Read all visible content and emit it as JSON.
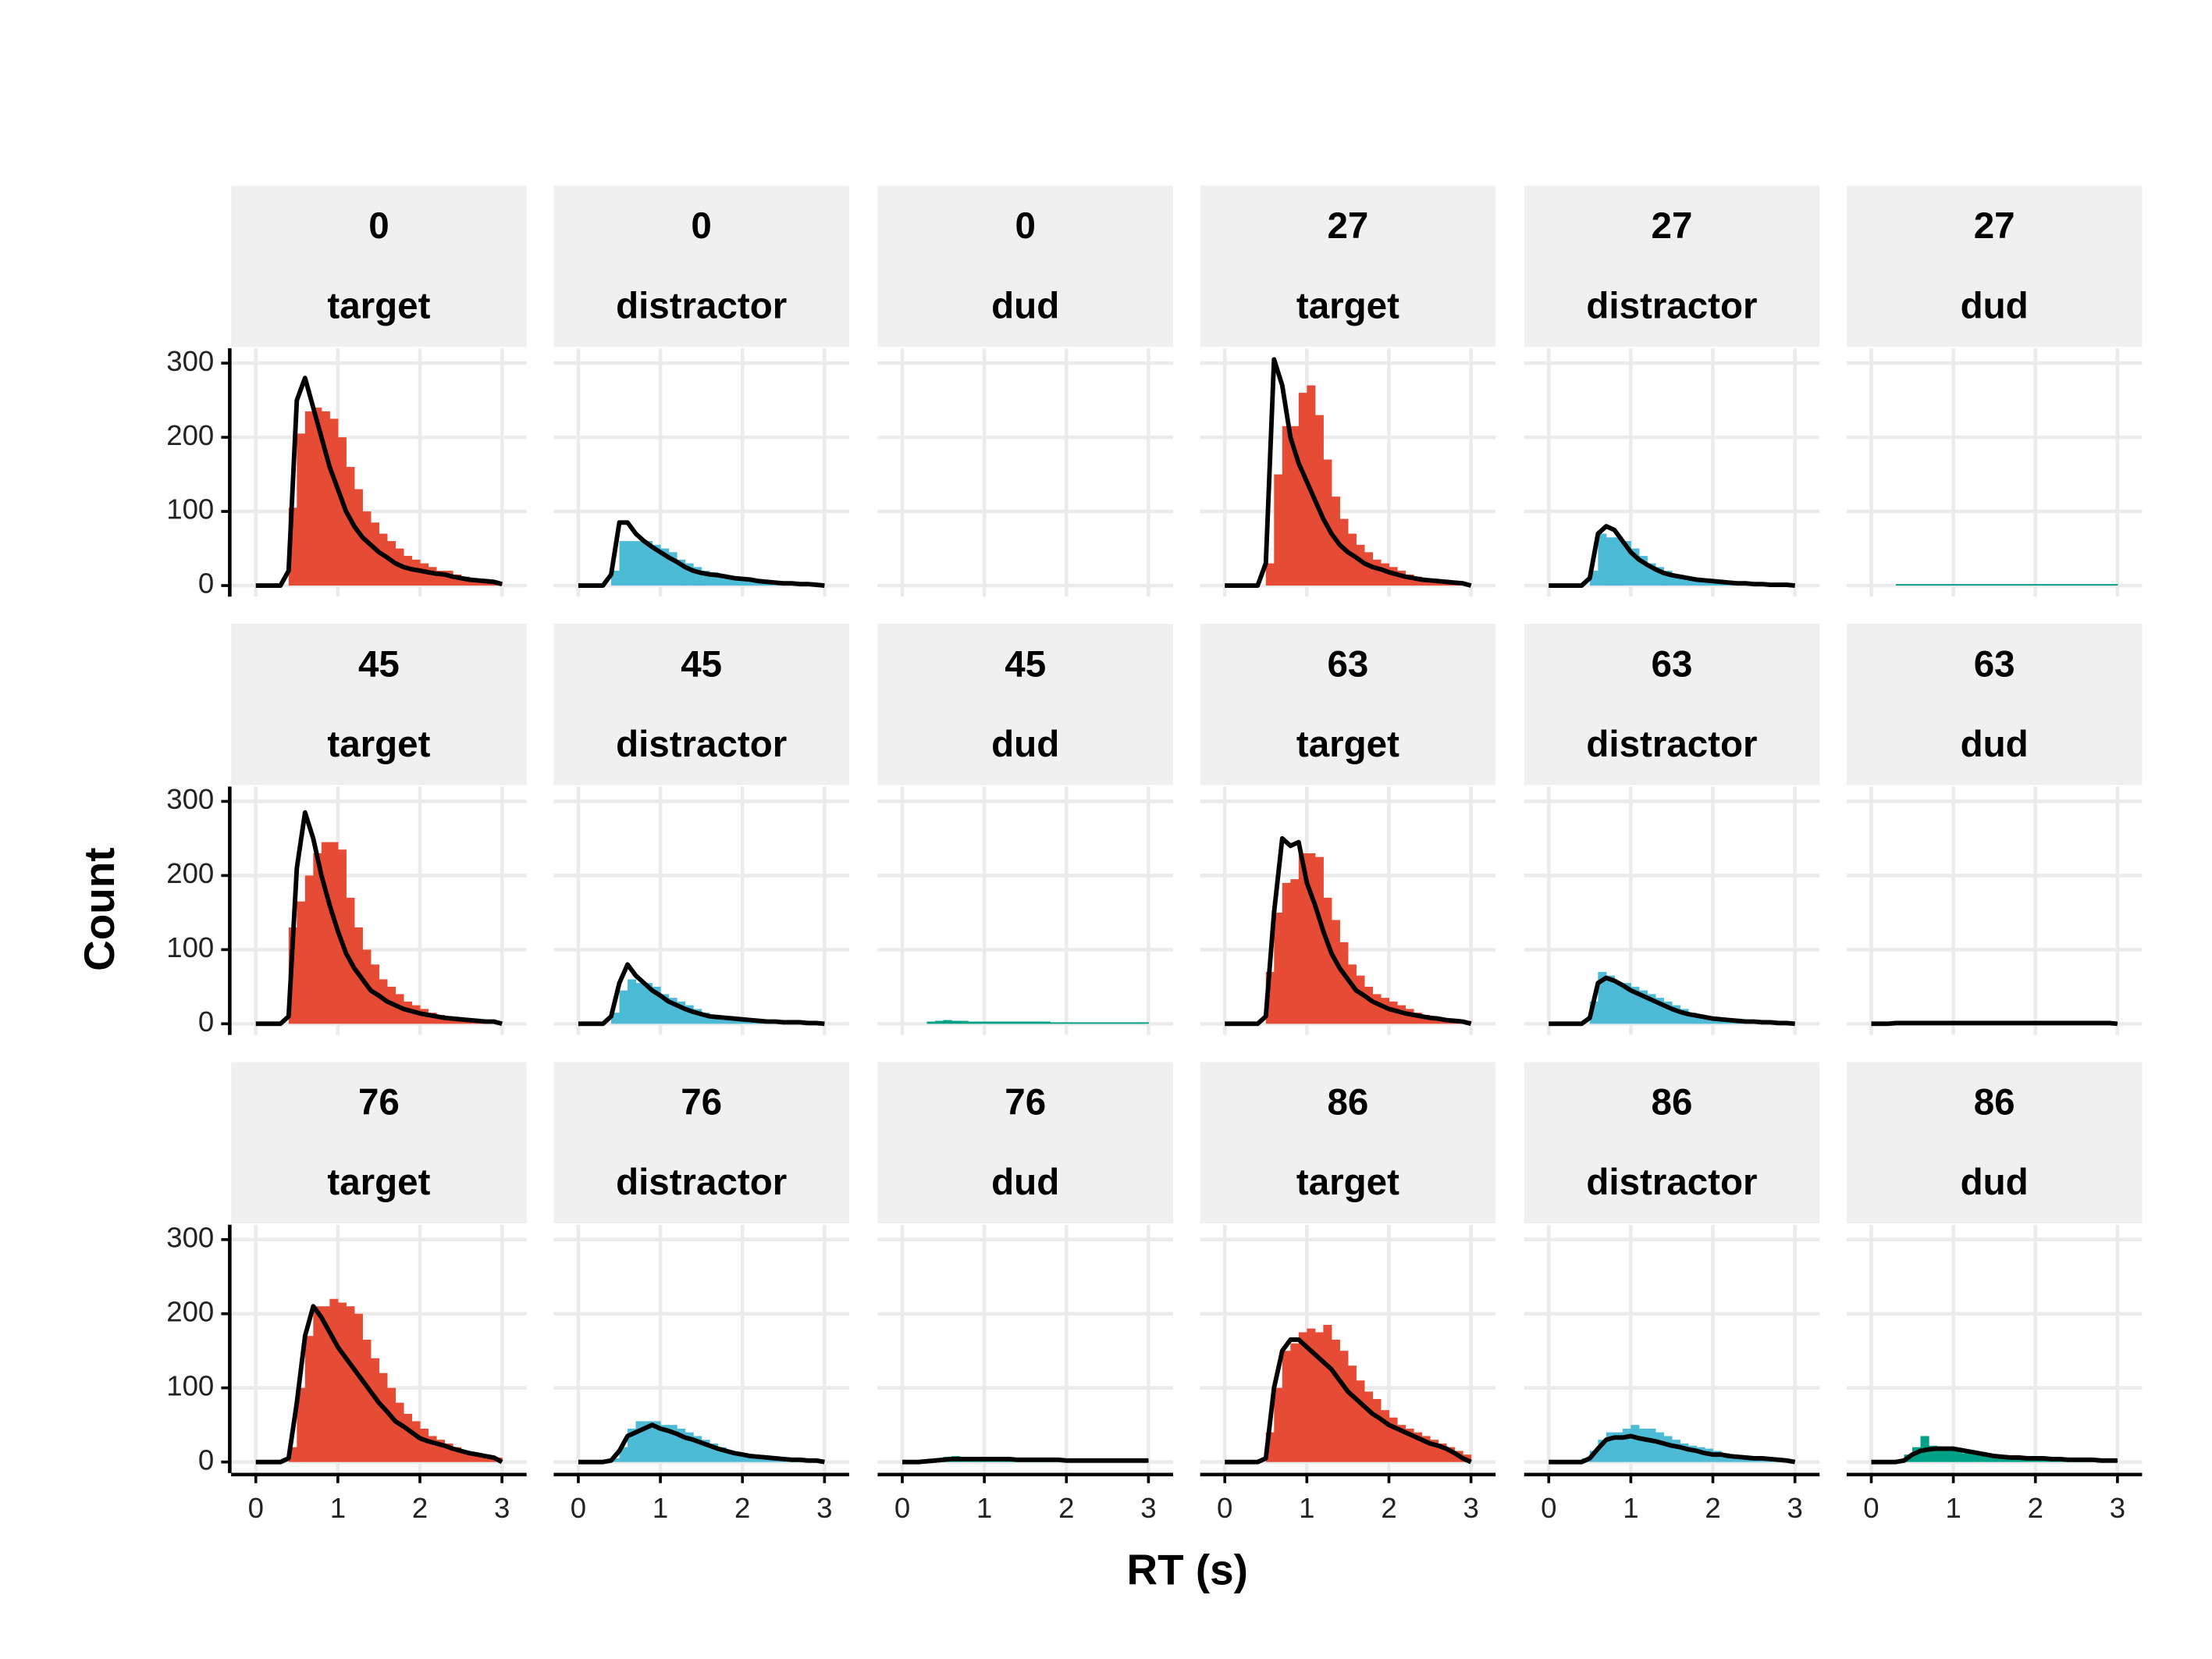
{
  "chart_data": {
    "type": "histogram",
    "xlabel": "RT (s)",
    "ylabel": "Count",
    "xlim": [
      -0.3,
      3.3
    ],
    "ylim": [
      -15,
      320
    ],
    "xticks": [
      0,
      1,
      2,
      3
    ],
    "yticks": [
      0,
      100,
      200,
      300
    ],
    "grid": true,
    "line_color": "#000000",
    "bins": [
      0,
      0.1,
      0.2,
      0.3,
      0.4,
      0.5,
      0.6,
      0.7,
      0.8,
      0.9,
      1,
      1.1,
      1.2,
      1.3,
      1.4,
      1.5,
      1.6,
      1.7,
      1.8,
      1.9,
      2,
      2.1,
      2.2,
      2.3,
      2.4,
      2.5,
      2.6,
      2.7,
      2.8,
      2.9,
      3
    ],
    "panels": [
      {
        "strip": [
          "0",
          "target"
        ],
        "color": "#E64B35",
        "counts": [
          0,
          0,
          0,
          0,
          105,
          205,
          235,
          240,
          235,
          225,
          200,
          160,
          130,
          100,
          85,
          70,
          60,
          50,
          40,
          35,
          30,
          25,
          20,
          20,
          15,
          12,
          10,
          8,
          6,
          4
        ],
        "line": [
          0,
          0,
          0,
          0,
          20,
          250,
          280,
          240,
          200,
          160,
          130,
          100,
          80,
          65,
          55,
          45,
          38,
          30,
          25,
          22,
          20,
          18,
          16,
          15,
          12,
          10,
          8,
          7,
          6,
          5,
          2
        ]
      },
      {
        "strip": [
          "0",
          "distractor"
        ],
        "color": "#4DBBD5",
        "counts": [
          0,
          0,
          0,
          0,
          20,
          60,
          60,
          60,
          60,
          55,
          50,
          45,
          35,
          30,
          25,
          20,
          18,
          15,
          12,
          10,
          8,
          7,
          6,
          5,
          4,
          3,
          3,
          2,
          2,
          1
        ],
        "line": [
          0,
          0,
          0,
          0,
          15,
          85,
          85,
          70,
          60,
          52,
          45,
          38,
          32,
          25,
          20,
          17,
          15,
          14,
          12,
          10,
          9,
          8,
          6,
          5,
          4,
          3,
          3,
          2,
          2,
          1,
          0
        ]
      },
      {
        "strip": [
          "0",
          "dud"
        ],
        "color": "#00A087",
        "counts": [
          0,
          0,
          0,
          0,
          0,
          0,
          0,
          0,
          0,
          0,
          0,
          0,
          0,
          0,
          0,
          0,
          0,
          0,
          0,
          0,
          0,
          0,
          0,
          0,
          0,
          0,
          0,
          0,
          0,
          0
        ]
      },
      {
        "strip": [
          "27",
          "target"
        ],
        "color": "#E64B35",
        "counts": [
          0,
          0,
          0,
          0,
          0,
          30,
          150,
          215,
          215,
          260,
          270,
          230,
          170,
          120,
          90,
          70,
          55,
          45,
          35,
          30,
          25,
          20,
          15,
          12,
          10,
          8,
          6,
          5,
          4,
          3
        ],
        "line": [
          0,
          0,
          0,
          0,
          0,
          30,
          305,
          270,
          200,
          165,
          140,
          115,
          90,
          70,
          55,
          45,
          38,
          30,
          25,
          22,
          18,
          15,
          12,
          10,
          8,
          7,
          6,
          5,
          4,
          3,
          0
        ]
      },
      {
        "strip": [
          "27",
          "distractor"
        ],
        "color": "#4DBBD5",
        "counts": [
          0,
          0,
          0,
          0,
          0,
          20,
          70,
          65,
          65,
          60,
          50,
          40,
          30,
          25,
          20,
          15,
          12,
          10,
          8,
          7,
          6,
          5,
          4,
          3,
          3,
          2,
          2,
          2,
          1,
          1
        ],
        "line": [
          0,
          0,
          0,
          0,
          0,
          10,
          70,
          80,
          75,
          60,
          45,
          35,
          28,
          22,
          17,
          14,
          12,
          10,
          8,
          7,
          6,
          5,
          4,
          3,
          3,
          2,
          2,
          1,
          1,
          1,
          0
        ]
      },
      {
        "strip": [
          "27",
          "dud"
        ],
        "color": "#00A087",
        "counts": [
          0,
          0,
          0,
          2,
          2,
          2,
          2,
          2,
          2,
          2,
          2,
          2,
          2,
          2,
          2,
          2,
          2,
          2,
          2,
          2,
          2,
          2,
          2,
          2,
          2,
          2,
          2,
          2,
          2,
          2
        ]
      },
      {
        "strip": [
          "45",
          "target"
        ],
        "color": "#E64B35",
        "counts": [
          0,
          0,
          0,
          0,
          130,
          165,
          200,
          230,
          245,
          245,
          235,
          170,
          130,
          100,
          80,
          60,
          50,
          40,
          30,
          25,
          20,
          15,
          12,
          10,
          8,
          7,
          6,
          5,
          4,
          3
        ],
        "line": [
          0,
          0,
          0,
          0,
          10,
          210,
          285,
          250,
          200,
          160,
          125,
          95,
          75,
          60,
          45,
          38,
          30,
          25,
          20,
          17,
          14,
          12,
          10,
          8,
          7,
          6,
          5,
          4,
          3,
          3,
          0
        ]
      },
      {
        "strip": [
          "45",
          "distractor"
        ],
        "color": "#4DBBD5",
        "counts": [
          0,
          0,
          0,
          0,
          15,
          45,
          60,
          55,
          55,
          50,
          40,
          35,
          30,
          25,
          20,
          15,
          12,
          10,
          8,
          6,
          5,
          4,
          4,
          3,
          3,
          2,
          2,
          1,
          1,
          1
        ],
        "line": [
          0,
          0,
          0,
          0,
          10,
          55,
          80,
          65,
          55,
          45,
          38,
          30,
          25,
          20,
          16,
          13,
          10,
          9,
          8,
          7,
          6,
          5,
          4,
          3,
          3,
          2,
          2,
          2,
          1,
          1,
          0
        ]
      },
      {
        "strip": [
          "45",
          "dud"
        ],
        "color": "#00A087",
        "counts": [
          0,
          0,
          0,
          3,
          4,
          5,
          4,
          4,
          3,
          3,
          3,
          3,
          3,
          3,
          3,
          3,
          3,
          3,
          2,
          2,
          2,
          2,
          2,
          2,
          2,
          2,
          2,
          2,
          2,
          2
        ]
      },
      {
        "strip": [
          "63",
          "target"
        ],
        "color": "#E64B35",
        "counts": [
          0,
          0,
          0,
          0,
          0,
          70,
          150,
          190,
          195,
          230,
          230,
          225,
          170,
          140,
          110,
          80,
          65,
          50,
          40,
          35,
          30,
          25,
          20,
          15,
          12,
          10,
          8,
          7,
          5,
          4
        ],
        "line": [
          0,
          0,
          0,
          0,
          0,
          10,
          150,
          250,
          240,
          245,
          190,
          160,
          125,
          95,
          75,
          60,
          45,
          38,
          30,
          25,
          20,
          17,
          14,
          12,
          10,
          8,
          7,
          5,
          4,
          3,
          0
        ]
      },
      {
        "strip": [
          "63",
          "distractor"
        ],
        "color": "#4DBBD5",
        "counts": [
          0,
          0,
          0,
          0,
          0,
          30,
          70,
          65,
          55,
          55,
          50,
          45,
          40,
          35,
          30,
          25,
          20,
          15,
          12,
          10,
          8,
          6,
          5,
          4,
          3,
          3,
          2,
          2,
          1,
          1
        ],
        "line": [
          0,
          0,
          0,
          0,
          0,
          8,
          55,
          62,
          58,
          52,
          45,
          40,
          35,
          30,
          25,
          20,
          16,
          13,
          11,
          9,
          7,
          6,
          5,
          4,
          3,
          3,
          2,
          2,
          1,
          1,
          0
        ]
      },
      {
        "strip": [
          "63",
          "dud"
        ],
        "color": "#00A087",
        "counts": [
          0,
          0,
          0,
          1,
          1,
          1,
          1,
          1,
          1,
          1,
          1,
          1,
          1,
          1,
          1,
          1,
          1,
          1,
          1,
          1,
          1,
          1,
          1,
          1,
          1,
          1,
          1,
          1,
          1,
          1
        ],
        "line": [
          0,
          0,
          0,
          1,
          1,
          1,
          1,
          1,
          1,
          1,
          1,
          1,
          1,
          1,
          1,
          1,
          1,
          1,
          1,
          1,
          1,
          1,
          1,
          1,
          1,
          1,
          1,
          1,
          1,
          1,
          0
        ]
      },
      {
        "strip": [
          "76",
          "target"
        ],
        "color": "#E64B35",
        "counts": [
          0,
          0,
          0,
          0,
          20,
          100,
          170,
          210,
          210,
          220,
          215,
          210,
          200,
          165,
          140,
          120,
          100,
          80,
          65,
          55,
          45,
          35,
          30,
          25,
          20,
          15,
          12,
          10,
          8,
          6
        ],
        "line": [
          0,
          0,
          0,
          0,
          5,
          80,
          170,
          210,
          195,
          175,
          155,
          140,
          125,
          110,
          95,
          80,
          68,
          55,
          48,
          40,
          32,
          28,
          25,
          22,
          18,
          15,
          12,
          10,
          8,
          6,
          0
        ]
      },
      {
        "strip": [
          "76",
          "distractor"
        ],
        "color": "#4DBBD5",
        "counts": [
          0,
          0,
          0,
          0,
          5,
          20,
          45,
          55,
          55,
          55,
          50,
          50,
          45,
          40,
          35,
          30,
          25,
          20,
          15,
          12,
          10,
          8,
          7,
          6,
          5,
          4,
          3,
          2,
          2,
          1
        ],
        "line": [
          0,
          0,
          0,
          0,
          2,
          15,
          35,
          40,
          45,
          50,
          45,
          42,
          38,
          33,
          30,
          26,
          22,
          18,
          15,
          12,
          10,
          8,
          7,
          6,
          5,
          4,
          3,
          3,
          2,
          2,
          0
        ]
      },
      {
        "strip": [
          "76",
          "dud"
        ],
        "color": "#00A087",
        "counts": [
          0,
          0,
          0,
          1,
          5,
          7,
          8,
          6,
          5,
          5,
          4,
          5,
          4,
          4,
          3,
          3,
          3,
          3,
          3,
          3,
          2,
          2,
          2,
          2,
          2,
          2,
          2,
          2,
          2,
          2
        ],
        "line": [
          0,
          0,
          0,
          1,
          2,
          3,
          4,
          4,
          4,
          4,
          4,
          4,
          4,
          4,
          3,
          3,
          3,
          3,
          3,
          3,
          2,
          2,
          2,
          2,
          2,
          2,
          2,
          2,
          2,
          2,
          2
        ]
      },
      {
        "strip": [
          "86",
          "target"
        ],
        "color": "#E64B35",
        "counts": [
          0,
          0,
          0,
          0,
          0,
          40,
          100,
          150,
          160,
          175,
          180,
          175,
          185,
          165,
          150,
          130,
          110,
          95,
          85,
          70,
          60,
          50,
          45,
          40,
          35,
          30,
          25,
          20,
          15,
          10
        ],
        "line": [
          0,
          0,
          0,
          0,
          0,
          5,
          100,
          150,
          165,
          165,
          155,
          145,
          135,
          125,
          110,
          95,
          85,
          75,
          65,
          58,
          50,
          45,
          40,
          35,
          30,
          25,
          22,
          18,
          12,
          5,
          0
        ]
      },
      {
        "strip": [
          "86",
          "distractor"
        ],
        "color": "#4DBBD5",
        "counts": [
          0,
          0,
          0,
          0,
          5,
          15,
          30,
          40,
          40,
          45,
          50,
          45,
          45,
          40,
          35,
          30,
          25,
          22,
          20,
          18,
          15,
          12,
          10,
          8,
          7,
          6,
          5,
          4,
          3,
          2
        ],
        "line": [
          0,
          0,
          0,
          0,
          0,
          5,
          18,
          30,
          33,
          33,
          35,
          32,
          30,
          28,
          25,
          22,
          20,
          17,
          15,
          12,
          10,
          10,
          8,
          7,
          6,
          5,
          5,
          4,
          3,
          2,
          0
        ]
      },
      {
        "strip": [
          "86",
          "dud"
        ],
        "color": "#00A087",
        "counts": [
          0,
          0,
          0,
          0,
          10,
          20,
          35,
          22,
          18,
          15,
          15,
          12,
          12,
          10,
          10,
          8,
          7,
          6,
          6,
          5,
          5,
          4,
          4,
          4,
          3,
          3,
          3,
          2,
          2,
          2
        ],
        "line": [
          0,
          0,
          0,
          0,
          2,
          10,
          15,
          17,
          18,
          18,
          18,
          16,
          14,
          12,
          10,
          8,
          7,
          6,
          6,
          5,
          5,
          5,
          4,
          4,
          3,
          3,
          3,
          3,
          2,
          2,
          2
        ]
      }
    ]
  }
}
